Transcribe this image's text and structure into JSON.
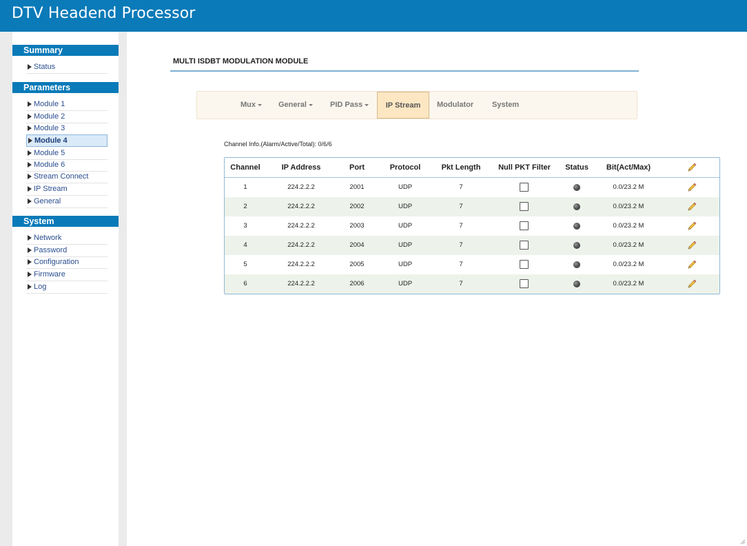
{
  "app": {
    "title": "DTV Headend Processor"
  },
  "sidebar": {
    "sections": [
      {
        "title": "Summary",
        "items": [
          {
            "label": "Status",
            "active": false
          }
        ]
      },
      {
        "title": "Parameters",
        "items": [
          {
            "label": "Module 1",
            "active": false
          },
          {
            "label": "Module 2",
            "active": false
          },
          {
            "label": "Module 3",
            "active": false
          },
          {
            "label": "Module 4",
            "active": true
          },
          {
            "label": "Module 5",
            "active": false
          },
          {
            "label": "Module 6",
            "active": false
          },
          {
            "label": "Stream Connect",
            "active": false
          },
          {
            "label": "IP Stream",
            "active": false
          },
          {
            "label": "General",
            "active": false
          }
        ]
      },
      {
        "title": "System",
        "items": [
          {
            "label": "Network",
            "active": false
          },
          {
            "label": "Password",
            "active": false
          },
          {
            "label": "Configuration",
            "active": false
          },
          {
            "label": "Firmware",
            "active": false
          },
          {
            "label": "Log",
            "active": false
          }
        ]
      }
    ]
  },
  "main": {
    "page_title": "MULTI ISDBT MODULATION MODULE",
    "tabs": [
      {
        "label": "Mux",
        "dropdown": true,
        "active": false
      },
      {
        "label": "General",
        "dropdown": true,
        "active": false
      },
      {
        "label": "PID Pass",
        "dropdown": true,
        "active": false
      },
      {
        "label": "IP Stream",
        "dropdown": false,
        "active": true
      },
      {
        "label": "Modulator",
        "dropdown": false,
        "active": false
      },
      {
        "label": "System",
        "dropdown": false,
        "active": false
      }
    ],
    "channel_info": "Channel Info.(Alarm/Active/Total): 0/6/6",
    "table": {
      "headers": [
        "Channel",
        "IP Address",
        "Port",
        "Protocol",
        "Pkt Length",
        "Null PKT Filter",
        "Status",
        "Bit(Act/Max)"
      ],
      "edit_header_icon": "pencil-icon",
      "rows": [
        {
          "channel": "1",
          "ip": "224.2.2.2",
          "port": "2001",
          "protocol": "UDP",
          "pkt_length": "7",
          "null_filter": false,
          "status": "inactive",
          "bit": "0.0/23.2 M"
        },
        {
          "channel": "2",
          "ip": "224.2.2.2",
          "port": "2002",
          "protocol": "UDP",
          "pkt_length": "7",
          "null_filter": false,
          "status": "inactive",
          "bit": "0.0/23.2 M"
        },
        {
          "channel": "3",
          "ip": "224.2.2.2",
          "port": "2003",
          "protocol": "UDP",
          "pkt_length": "7",
          "null_filter": false,
          "status": "inactive",
          "bit": "0.0/23.2 M"
        },
        {
          "channel": "4",
          "ip": "224.2.2.2",
          "port": "2004",
          "protocol": "UDP",
          "pkt_length": "7",
          "null_filter": false,
          "status": "inactive",
          "bit": "0.0/23.2 M"
        },
        {
          "channel": "5",
          "ip": "224.2.2.2",
          "port": "2005",
          "protocol": "UDP",
          "pkt_length": "7",
          "null_filter": false,
          "status": "inactive",
          "bit": "0.0/23.2 M"
        },
        {
          "channel": "6",
          "ip": "224.2.2.2",
          "port": "2006",
          "protocol": "UDP",
          "pkt_length": "7",
          "null_filter": false,
          "status": "inactive",
          "bit": "0.0/23.2 M"
        }
      ]
    }
  },
  "colors": {
    "brand": "#0a7ab8",
    "tab_active_bg": "#fde7c3",
    "row_alt_bg": "#edf3ea",
    "link": "#2a4d8f"
  }
}
